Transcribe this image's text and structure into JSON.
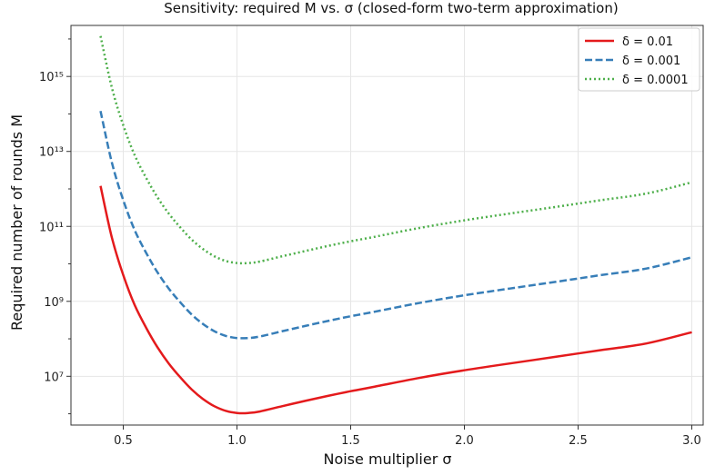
{
  "chart_data": {
    "type": "line",
    "title": "Sensitivity: required M vs. σ  (closed-form two-term approximation)",
    "xlabel": "Noise multiplier σ",
    "ylabel": "Required number of rounds M",
    "x_scale": "linear",
    "y_scale": "log",
    "xlim": [
      0.27,
      3.05
    ],
    "ylim": [
      500000.0,
      2.3e+16
    ],
    "x_ticks": [
      0.5,
      1.0,
      1.5,
      2.0,
      2.5,
      3.0
    ],
    "x_tick_labels": [
      "0.5",
      "1.0",
      "1.5",
      "2.0",
      "2.5",
      "3.0"
    ],
    "y_tick_exponents": [
      7,
      9,
      11,
      13,
      15
    ],
    "y_tick_labels": [
      "10⁷",
      "10⁹",
      "10¹¹",
      "10¹³",
      "10¹⁵"
    ],
    "grid": true,
    "legend_position": "top-right",
    "x": [
      0.4,
      0.45,
      0.5,
      0.55,
      0.6,
      0.65,
      0.7,
      0.75,
      0.8,
      0.85,
      0.9,
      0.95,
      1.0,
      1.05,
      1.1,
      1.2,
      1.3,
      1.4,
      1.5,
      1.6,
      1.8,
      2.0,
      2.2,
      2.4,
      2.6,
      2.8,
      3.0
    ],
    "series": [
      {
        "name": "δ = 0.01",
        "color": "#e41a1c",
        "dash": "solid",
        "values": [
          1200000000000.0,
          50000000000.0,
          5000000000.0,
          800000000.0,
          200000000.0,
          60000000.0,
          22000000.0,
          9500000.0,
          4500000.0,
          2500000.0,
          1600000.0,
          1200000.0,
          1050000.0,
          1050000.0,
          1150000.0,
          1600000.0,
          2200000.0,
          3000000.0,
          4000000.0,
          5200000.0,
          9000000.0,
          14500000.0,
          22000000.0,
          33000000.0,
          50000000.0,
          75000000.0,
          150000000.0
        ]
      },
      {
        "name": "δ = 0.001",
        "color": "#377eb8",
        "dash": "dashed",
        "values": [
          120000000000000.0,
          5000000000000.0,
          500000000000.0,
          80000000000.0,
          20000000000.0,
          6000000000.0,
          2200000000.0,
          950000000.0,
          450000000.0,
          250000000.0,
          160000000.0,
          120000000.0,
          105000000.0,
          105000000.0,
          115000000.0,
          160000000.0,
          220000000.0,
          300000000.0,
          400000000.0,
          520000000.0,
          900000000.0,
          1450000000.0,
          2200000000.0,
          3300000000.0,
          5000000000.0,
          7500000000.0,
          15000000000.0
        ]
      },
      {
        "name": "δ = 0.0001",
        "color": "#4daf4a",
        "dash": "dotted",
        "values": [
          1.2e+16,
          500000000000000.0,
          50000000000000.0,
          8000000000000.0,
          2000000000000.0,
          600000000000.0,
          220000000000.0,
          95000000000.0,
          45000000000.0,
          25000000000.0,
          16000000000.0,
          12000000000.0,
          10500000000.0,
          10500000000.0,
          11500000000.0,
          16000000000.0,
          22000000000.0,
          30000000000.0,
          40000000000.0,
          52000000000.0,
          90000000000.0,
          145000000000.0,
          220000000000.0,
          330000000000.0,
          500000000000.0,
          750000000000.0,
          1500000000000.0
        ]
      }
    ]
  }
}
